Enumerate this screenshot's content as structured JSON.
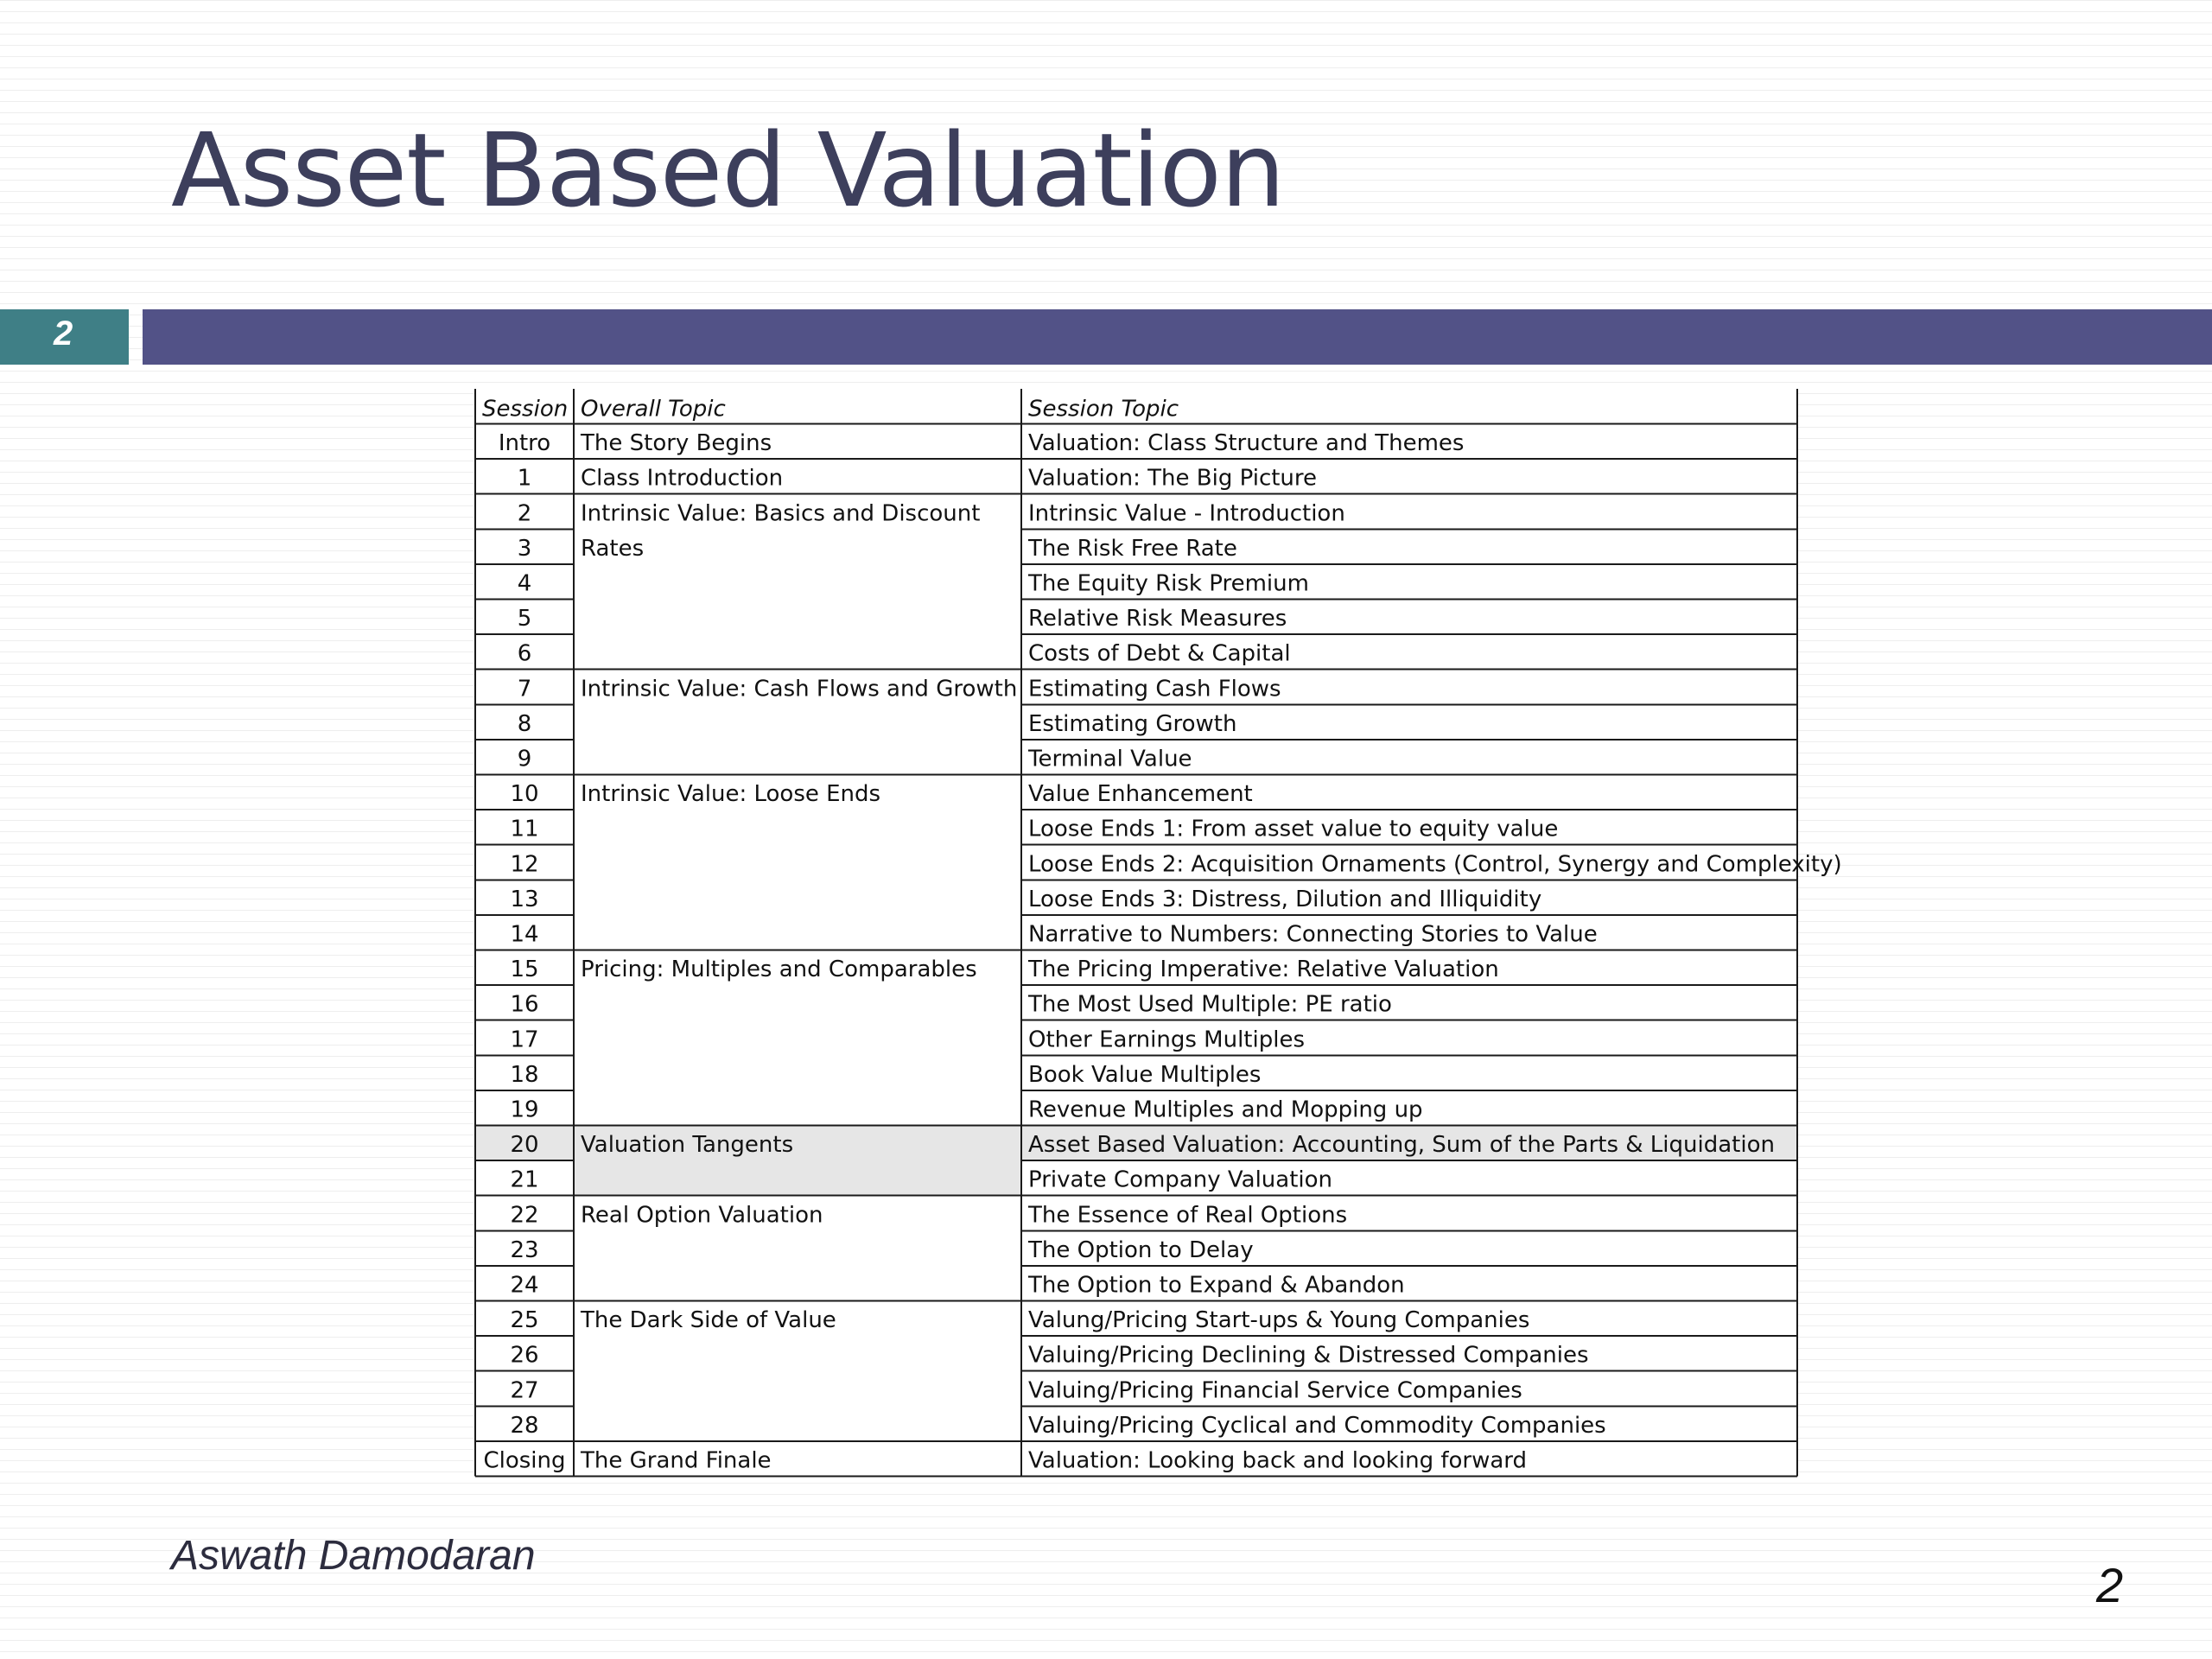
{
  "slide": {
    "title": "Asset Based Valuation",
    "number_tab": "2",
    "author": "Aswath Damodaran",
    "page_number": "2"
  },
  "colors": {
    "title_text": "#3d3f5c",
    "teal_band": "#3f7f86",
    "purple_band": "#525287",
    "highlight_row": "#e6e6e6"
  },
  "table": {
    "headers": {
      "session": "Session",
      "overall": "Overall Topic",
      "topic": "Session Topic"
    },
    "highlight_session": "20",
    "groups": [
      {
        "label": "The Story Begins",
        "start": 0,
        "end": 0
      },
      {
        "label": "Class Introduction",
        "start": 1,
        "end": 1
      },
      {
        "label": "Intrinsic Value: Basics and Discount",
        "label2": "Rates",
        "start": 2,
        "end": 6
      },
      {
        "label": "Intrinsic Value: Cash Flows and Growth",
        "start": 7,
        "end": 9
      },
      {
        "label": "Intrinsic Value: Loose Ends",
        "start": 10,
        "end": 14
      },
      {
        "label": "Pricing: Multiples and Comparables",
        "start": 15,
        "end": 19
      },
      {
        "label": "Valuation Tangents",
        "start": 20,
        "end": 21
      },
      {
        "label": "Real Option Valuation",
        "start": 22,
        "end": 24
      },
      {
        "label": "The Dark Side of Value",
        "start": 25,
        "end": 28
      },
      {
        "label": "The Grand Finale",
        "start": 29,
        "end": 29
      }
    ],
    "rows": [
      {
        "session": "Intro",
        "topic": "Valuation: Class Structure and Themes"
      },
      {
        "session": "1",
        "topic": "Valuation: The Big Picture"
      },
      {
        "session": "2",
        "topic": "Intrinsic Value  - Introduction"
      },
      {
        "session": "3",
        "topic": "The Risk Free Rate"
      },
      {
        "session": "4",
        "topic": "The Equity Risk Premium"
      },
      {
        "session": "5",
        "topic": "Relative Risk Measures"
      },
      {
        "session": "6",
        "topic": "Costs of Debt & Capital"
      },
      {
        "session": "7",
        "topic": "Estimating Cash Flows"
      },
      {
        "session": "8",
        "topic": "Estimating Growth"
      },
      {
        "session": "9",
        "topic": "Terminal Value"
      },
      {
        "session": "10",
        "topic": "Value Enhancement"
      },
      {
        "session": "11",
        "topic": "Loose Ends 1: From asset value to equity value"
      },
      {
        "session": "12",
        "topic": "Loose Ends 2: Acquisition Ornaments (Control, Synergy and Complexity)"
      },
      {
        "session": "13",
        "topic": "Loose Ends 3: Distress, Dilution and Illiquidity"
      },
      {
        "session": "14",
        "topic": "Narrative to Numbers: Connecting Stories to Value"
      },
      {
        "session": "15",
        "topic": "The Pricing Imperative: Relative Valuation"
      },
      {
        "session": "16",
        "topic": "The Most Used Multiple: PE ratio"
      },
      {
        "session": "17",
        "topic": "Other Earnings Multiples"
      },
      {
        "session": "18",
        "topic": "Book Value Multiples"
      },
      {
        "session": "19",
        "topic": "Revenue Multiples and Mopping up"
      },
      {
        "session": "20",
        "topic": "Asset Based Valuation: Accounting, Sum of the Parts & Liquidation"
      },
      {
        "session": "21",
        "topic": "Private Company Valuation"
      },
      {
        "session": "22",
        "topic": "The Essence of Real Options"
      },
      {
        "session": "23",
        "topic": "The Option to Delay"
      },
      {
        "session": "24",
        "topic": "The Option to Expand & Abandon"
      },
      {
        "session": "25",
        "topic": "Valung/Pricing Start-ups & Young Companies"
      },
      {
        "session": "26",
        "topic": "Valuing/Pricing Declining & Distressed Companies"
      },
      {
        "session": "27",
        "topic": "Valuing/Pricing Financial Service Companies"
      },
      {
        "session": "28",
        "topic": "Valuing/Pricing Cyclical and Commodity Companies"
      },
      {
        "session": "Closing",
        "topic": "Valuation: Looking back and looking forward"
      }
    ]
  }
}
